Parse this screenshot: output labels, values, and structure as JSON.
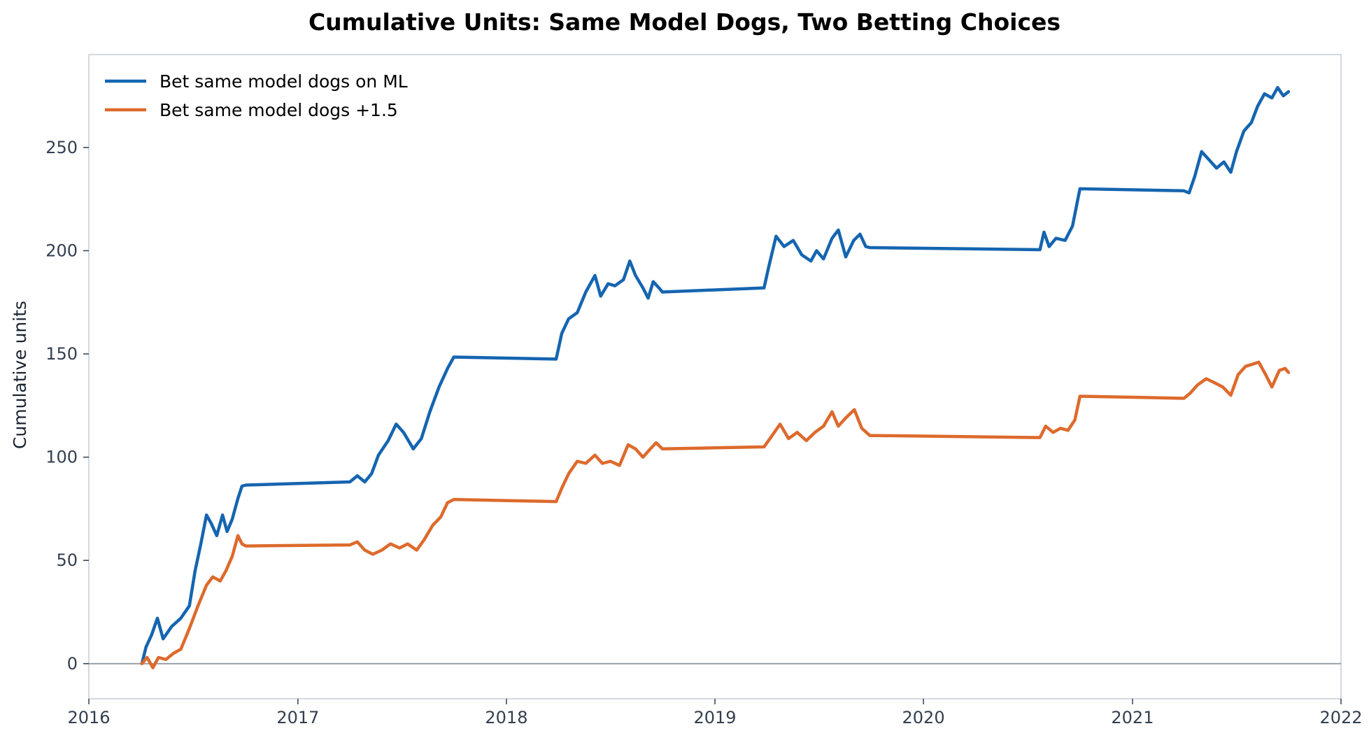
{
  "chart_data": {
    "type": "line",
    "title": "Cumulative Units: Same Model Dogs, Two Betting Choices",
    "xlabel": "",
    "ylabel": "Cumulative units",
    "x_ticks": [
      "2016",
      "2017",
      "2018",
      "2019",
      "2020",
      "2021",
      "2022"
    ],
    "y_ticks": [
      "0",
      "50",
      "100",
      "150",
      "200",
      "250"
    ],
    "xlim": [
      "2016-01-01",
      "2022-01-01"
    ],
    "ylim": [
      -17,
      295
    ],
    "grid": false,
    "reference_line_y": 0,
    "legend_position": "top-left",
    "series": [
      {
        "name": "Bet same model dogs on ML",
        "color": "#1565b0",
        "points": [
          [
            "2016-04-03",
            0
          ],
          [
            "2016-04-10",
            8
          ],
          [
            "2016-04-20",
            14
          ],
          [
            "2016-04-30",
            22
          ],
          [
            "2016-05-10",
            12
          ],
          [
            "2016-05-25",
            18
          ],
          [
            "2016-06-10",
            22
          ],
          [
            "2016-06-25",
            28
          ],
          [
            "2016-07-05",
            45
          ],
          [
            "2016-07-15",
            58
          ],
          [
            "2016-07-25",
            72
          ],
          [
            "2016-08-02",
            68
          ],
          [
            "2016-08-12",
            62
          ],
          [
            "2016-08-22",
            72
          ],
          [
            "2016-08-30",
            64
          ],
          [
            "2016-09-08",
            70
          ],
          [
            "2016-09-18",
            80
          ],
          [
            "2016-09-25",
            86
          ],
          [
            "2016-10-02",
            86.5
          ],
          [
            "2017-04-02",
            88
          ],
          [
            "2017-04-15",
            91
          ],
          [
            "2017-04-28",
            88
          ],
          [
            "2017-05-10",
            92
          ],
          [
            "2017-05-22",
            101
          ],
          [
            "2017-06-08",
            108
          ],
          [
            "2017-06-22",
            116
          ],
          [
            "2017-07-05",
            112
          ],
          [
            "2017-07-22",
            104
          ],
          [
            "2017-08-05",
            109
          ],
          [
            "2017-08-20",
            122
          ],
          [
            "2017-09-05",
            134
          ],
          [
            "2017-09-20",
            143
          ],
          [
            "2017-10-01",
            148.5
          ],
          [
            "2018-03-29",
            147.5
          ],
          [
            "2018-04-08",
            160
          ],
          [
            "2018-04-20",
            167
          ],
          [
            "2018-05-05",
            170
          ],
          [
            "2018-05-20",
            180
          ],
          [
            "2018-06-05",
            188
          ],
          [
            "2018-06-15",
            178
          ],
          [
            "2018-06-28",
            184
          ],
          [
            "2018-07-10",
            183
          ],
          [
            "2018-07-25",
            186
          ],
          [
            "2018-08-05",
            195
          ],
          [
            "2018-08-15",
            188
          ],
          [
            "2018-08-28",
            182
          ],
          [
            "2018-09-06",
            177
          ],
          [
            "2018-09-15",
            185
          ],
          [
            "2018-09-25",
            182
          ],
          [
            "2018-10-01",
            180
          ],
          [
            "2019-03-28",
            182
          ],
          [
            "2019-04-05",
            192
          ],
          [
            "2019-04-18",
            207
          ],
          [
            "2019-05-02",
            202
          ],
          [
            "2019-05-18",
            205
          ],
          [
            "2019-06-02",
            198
          ],
          [
            "2019-06-18",
            195
          ],
          [
            "2019-06-28",
            200
          ],
          [
            "2019-07-10",
            196
          ],
          [
            "2019-07-25",
            206
          ],
          [
            "2019-08-05",
            210
          ],
          [
            "2019-08-18",
            197
          ],
          [
            "2019-09-01",
            205
          ],
          [
            "2019-09-12",
            208
          ],
          [
            "2019-09-22",
            202
          ],
          [
            "2019-09-29",
            201.5
          ],
          [
            "2020-07-23",
            200.5
          ],
          [
            "2020-07-30",
            209
          ],
          [
            "2020-08-08",
            202
          ],
          [
            "2020-08-20",
            206
          ],
          [
            "2020-09-05",
            205
          ],
          [
            "2020-09-18",
            212
          ],
          [
            "2020-09-28",
            226
          ],
          [
            "2020-10-01",
            230
          ],
          [
            "2021-04-01",
            229
          ],
          [
            "2021-04-10",
            228
          ],
          [
            "2021-04-20",
            236
          ],
          [
            "2021-05-02",
            248
          ],
          [
            "2021-05-15",
            244
          ],
          [
            "2021-05-28",
            240
          ],
          [
            "2021-06-10",
            243
          ],
          [
            "2021-06-22",
            238
          ],
          [
            "2021-07-02",
            248
          ],
          [
            "2021-07-15",
            258
          ],
          [
            "2021-07-28",
            262
          ],
          [
            "2021-08-08",
            270
          ],
          [
            "2021-08-20",
            276
          ],
          [
            "2021-09-02",
            274
          ],
          [
            "2021-09-12",
            279
          ],
          [
            "2021-09-22",
            275
          ],
          [
            "2021-10-01",
            277
          ]
        ]
      },
      {
        "name": "Bet same model dogs +1.5",
        "color": "#dd6a2c",
        "points": [
          [
            "2016-04-03",
            0
          ],
          [
            "2016-04-12",
            3
          ],
          [
            "2016-04-22",
            -2
          ],
          [
            "2016-05-02",
            3
          ],
          [
            "2016-05-15",
            2
          ],
          [
            "2016-05-28",
            5
          ],
          [
            "2016-06-10",
            7
          ],
          [
            "2016-06-25",
            17
          ],
          [
            "2016-07-10",
            28
          ],
          [
            "2016-07-25",
            38
          ],
          [
            "2016-08-05",
            42
          ],
          [
            "2016-08-18",
            40
          ],
          [
            "2016-08-28",
            45
          ],
          [
            "2016-09-08",
            52
          ],
          [
            "2016-09-18",
            62
          ],
          [
            "2016-09-25",
            58
          ],
          [
            "2016-10-02",
            57
          ],
          [
            "2017-04-02",
            57.5
          ],
          [
            "2017-04-15",
            59
          ],
          [
            "2017-04-28",
            55
          ],
          [
            "2017-05-12",
            53
          ],
          [
            "2017-05-28",
            55
          ],
          [
            "2017-06-12",
            58
          ],
          [
            "2017-06-28",
            56
          ],
          [
            "2017-07-12",
            58
          ],
          [
            "2017-07-28",
            55
          ],
          [
            "2017-08-10",
            60
          ],
          [
            "2017-08-25",
            67
          ],
          [
            "2017-09-08",
            71
          ],
          [
            "2017-09-20",
            78
          ],
          [
            "2017-10-01",
            79.5
          ],
          [
            "2018-03-29",
            78.5
          ],
          [
            "2018-04-08",
            85
          ],
          [
            "2018-04-20",
            92
          ],
          [
            "2018-05-05",
            98
          ],
          [
            "2018-05-20",
            97
          ],
          [
            "2018-06-05",
            101
          ],
          [
            "2018-06-18",
            97
          ],
          [
            "2018-07-02",
            98
          ],
          [
            "2018-07-18",
            96
          ],
          [
            "2018-08-02",
            106
          ],
          [
            "2018-08-15",
            104
          ],
          [
            "2018-08-28",
            100
          ],
          [
            "2018-09-10",
            104
          ],
          [
            "2018-09-20",
            107
          ],
          [
            "2018-10-01",
            104
          ],
          [
            "2019-03-28",
            105
          ],
          [
            "2019-04-10",
            110
          ],
          [
            "2019-04-25",
            116
          ],
          [
            "2019-05-10",
            109
          ],
          [
            "2019-05-25",
            112
          ],
          [
            "2019-06-10",
            108
          ],
          [
            "2019-06-25",
            112
          ],
          [
            "2019-07-10",
            115
          ],
          [
            "2019-07-25",
            122
          ],
          [
            "2019-08-05",
            115
          ],
          [
            "2019-08-18",
            119
          ],
          [
            "2019-09-02",
            123
          ],
          [
            "2019-09-15",
            114
          ],
          [
            "2019-09-29",
            110.5
          ],
          [
            "2020-07-23",
            109.5
          ],
          [
            "2020-08-02",
            115
          ],
          [
            "2020-08-15",
            112
          ],
          [
            "2020-08-28",
            114
          ],
          [
            "2020-09-10",
            113
          ],
          [
            "2020-09-22",
            118
          ],
          [
            "2020-10-01",
            129.5
          ],
          [
            "2021-04-01",
            128.5
          ],
          [
            "2021-04-12",
            131
          ],
          [
            "2021-04-25",
            135
          ],
          [
            "2021-05-10",
            138
          ],
          [
            "2021-05-25",
            136
          ],
          [
            "2021-06-08",
            134
          ],
          [
            "2021-06-22",
            130
          ],
          [
            "2021-07-05",
            140
          ],
          [
            "2021-07-18",
            144
          ],
          [
            "2021-07-30",
            145
          ],
          [
            "2021-08-10",
            146
          ],
          [
            "2021-08-22",
            140
          ],
          [
            "2021-09-02",
            134
          ],
          [
            "2021-09-15",
            142
          ],
          [
            "2021-09-25",
            143
          ],
          [
            "2021-10-01",
            141
          ]
        ]
      }
    ]
  }
}
